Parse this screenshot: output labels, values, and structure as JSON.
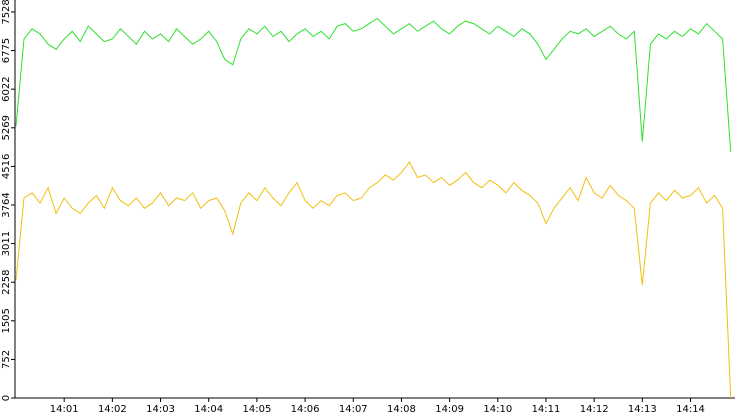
{
  "chart_data": {
    "type": "line",
    "categories": [
      null,
      null,
      null,
      null,
      null,
      null,
      "14:01",
      null,
      null,
      null,
      null,
      null,
      "14:02",
      null,
      null,
      null,
      null,
      null,
      "14:03",
      null,
      null,
      null,
      null,
      null,
      "14:04",
      null,
      null,
      null,
      null,
      null,
      "14:05",
      null,
      null,
      null,
      null,
      null,
      "14:06",
      null,
      null,
      null,
      null,
      null,
      "14:07",
      null,
      null,
      null,
      null,
      null,
      "14:08",
      null,
      null,
      null,
      null,
      null,
      "14:09",
      null,
      null,
      null,
      null,
      null,
      "14:10",
      null,
      null,
      null,
      null,
      null,
      "14:11",
      null,
      null,
      null,
      null,
      null,
      "14:12",
      null,
      null,
      null,
      null,
      null,
      "14:13",
      null,
      null,
      null,
      null,
      null,
      "14:14",
      null,
      null,
      null,
      null,
      null
    ],
    "series": [
      {
        "color": "#2ee02e",
        "values": [
          5300,
          7000,
          7200,
          7100,
          6900,
          6800,
          7000,
          7150,
          6950,
          7250,
          7100,
          6950,
          7000,
          7200,
          7050,
          6900,
          7150,
          7000,
          7100,
          6950,
          7200,
          7050,
          6900,
          7000,
          7150,
          6950,
          6600,
          6500,
          7000,
          7200,
          7100,
          7250,
          7050,
          7150,
          6950,
          7100,
          7200,
          7050,
          7150,
          7000,
          7250,
          7300,
          7150,
          7200,
          7300,
          7400,
          7250,
          7100,
          7200,
          7300,
          7150,
          7250,
          7350,
          7200,
          7100,
          7250,
          7350,
          7300,
          7200,
          7100,
          7250,
          7150,
          7050,
          7200,
          7100,
          6900,
          6600,
          6800,
          7000,
          7150,
          7100,
          7200,
          7050,
          7150,
          7250,
          7100,
          7000,
          7150,
          5000,
          6900,
          7100,
          7000,
          7150,
          7050,
          7200,
          7100,
          7300,
          7150,
          7000,
          4800
        ]
      },
      {
        "color": "#f0c010",
        "values": [
          2300,
          3900,
          4000,
          3800,
          4100,
          3600,
          3900,
          3700,
          3600,
          3800,
          3950,
          3700,
          4100,
          3850,
          3750,
          3900,
          3700,
          3800,
          4000,
          3750,
          3900,
          3850,
          4000,
          3700,
          3850,
          3900,
          3650,
          3200,
          3800,
          4000,
          3850,
          4100,
          3900,
          3750,
          4000,
          4200,
          3850,
          3700,
          3850,
          3750,
          3950,
          4000,
          3850,
          3900,
          4100,
          4200,
          4350,
          4250,
          4400,
          4600,
          4300,
          4350,
          4200,
          4300,
          4150,
          4250,
          4400,
          4200,
          4100,
          4250,
          4150,
          4000,
          4200,
          4050,
          3950,
          3800,
          3400,
          3700,
          3900,
          4100,
          3850,
          4300,
          4000,
          3900,
          4150,
          3950,
          3850,
          3700,
          2200,
          3800,
          4000,
          3850,
          4050,
          3900,
          3950,
          4100,
          3800,
          3950,
          3700,
          0
        ]
      }
    ],
    "ylim": [
      0,
      7761
    ],
    "yticks": [
      0,
      752,
      1505,
      2258,
      3011,
      3764,
      4516,
      5269,
      6022,
      6775,
      7528
    ]
  }
}
